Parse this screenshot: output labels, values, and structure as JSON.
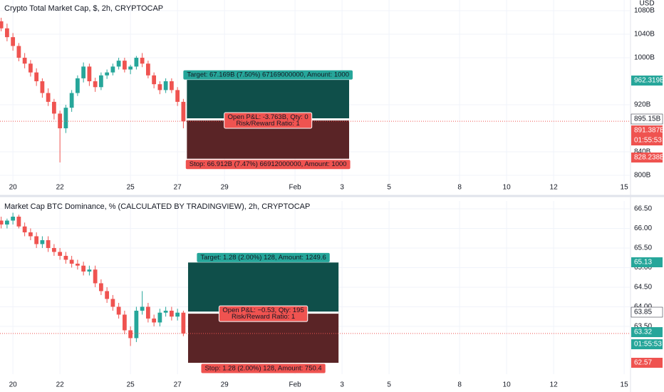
{
  "chart_data": [
    {
      "type": "candlestick",
      "title": "Crypto Total Market Cap, $, 2h, CRYPTOCAP",
      "currency": "USD",
      "up_color": "#26a69a",
      "down_color": "#ef5350",
      "grid": true,
      "xlim": [
        19.45,
        46.27
      ],
      "xticks": [
        20,
        22,
        25,
        27,
        29,
        {
          "value": 32,
          "label": "Feb"
        },
        {
          "value": 34,
          "label": "3"
        },
        {
          "value": 36,
          "label": "5"
        },
        {
          "value": 39,
          "label": "8"
        },
        {
          "value": 41,
          "label": "10"
        },
        {
          "value": 43,
          "label": "12"
        },
        {
          "value": 46,
          "label": "15"
        }
      ],
      "ylim": [
        787.9,
        1098.2
      ],
      "yticks": [
        {
          "value": 1080,
          "label": "1080B"
        },
        {
          "value": 1040,
          "label": "1040B"
        },
        {
          "value": 1000,
          "label": "1000B"
        },
        {
          "value": 920,
          "label": "920B"
        },
        {
          "value": 840,
          "label": "840B"
        },
        {
          "value": 800,
          "label": "800B"
        }
      ],
      "x": [
        19.5,
        19.75,
        20,
        20.25,
        20.5,
        20.75,
        21,
        21.25,
        21.5,
        21.75,
        22,
        22.25,
        22.5,
        22.75,
        23,
        23.25,
        23.5,
        23.75,
        24,
        24.25,
        24.5,
        24.75,
        25,
        25.25,
        25.5,
        25.75,
        26,
        26.25,
        26.5,
        26.75,
        27,
        27.25
      ],
      "open": [
        1062,
        1050,
        1035,
        1020,
        1000,
        990,
        975,
        960,
        940,
        925,
        905,
        880,
        915,
        940,
        965,
        985,
        960,
        950,
        970,
        975,
        985,
        995,
        980,
        985,
        1000,
        990,
        970,
        955,
        945,
        960,
        945,
        925
      ],
      "high": [
        1068,
        1058,
        1042,
        1025,
        1008,
        996,
        982,
        965,
        948,
        930,
        910,
        920,
        945,
        970,
        992,
        990,
        966,
        975,
        980,
        990,
        1000,
        1000,
        988,
        1003,
        1008,
        995,
        975,
        960,
        965,
        965,
        950,
        930
      ],
      "low": [
        1045,
        1028,
        1012,
        994,
        982,
        968,
        952,
        932,
        918,
        895,
        822,
        872,
        908,
        935,
        958,
        952,
        942,
        945,
        964,
        970,
        980,
        975,
        972,
        980,
        984,
        965,
        948,
        938,
        940,
        940,
        918,
        880
      ],
      "close": [
        1050,
        1035,
        1020,
        1000,
        990,
        975,
        960,
        940,
        925,
        905,
        880,
        915,
        940,
        965,
        985,
        960,
        950,
        970,
        975,
        985,
        995,
        980,
        985,
        1000,
        990,
        970,
        955,
        945,
        960,
        945,
        925,
        892
      ],
      "position": {
        "x_start": 27.4,
        "x_end": 34.3,
        "target": 962.319,
        "entry": 895.15,
        "stop": 828.238,
        "target_label": "Target: 67.169B (7.50%) 67169000000, Amount: 1000",
        "pnl_label": "Open P&L: -3.763B, Qty: 0",
        "ratio_label": "Risk/Reward Ratio: 1",
        "stop_label": "Stop: 66.912B (7.47%) 66912000000, Amount: 1000"
      },
      "price_labels": [
        {
          "label": "962.319B",
          "color": "#26a69a"
        },
        {
          "label": "895.15B",
          "color": "#ffffff"
        },
        {
          "label": "891.387B",
          "color": "#ef5350"
        },
        {
          "label": "01:55:53",
          "color": "#ef5350"
        },
        {
          "label": "828.238B",
          "color": "#ef5350"
        }
      ]
    },
    {
      "type": "candlestick",
      "title": "Market Cap BTC Dominance, % (CALCULATED BY TRADINGVIEW), 2h, CRYPTOCAP",
      "up_color": "#26a69a",
      "down_color": "#ef5350",
      "grid": true,
      "xlim": [
        19.45,
        46.27
      ],
      "xticks": [
        20,
        22,
        25,
        27,
        29,
        {
          "value": 32,
          "label": "Feb"
        },
        {
          "value": 34,
          "label": "3"
        },
        {
          "value": 36,
          "label": "5"
        },
        {
          "value": 39,
          "label": "8"
        },
        {
          "value": 41,
          "label": "10"
        },
        {
          "value": 43,
          "label": "12"
        },
        {
          "value": 46,
          "label": "15"
        }
      ],
      "ylim": [
        62.28,
        66.7
      ],
      "yticks": [
        {
          "value": 66.5,
          "label": "66.50"
        },
        {
          "value": 66,
          "label": "66.00"
        },
        {
          "value": 65.5,
          "label": "65.50"
        },
        {
          "value": 65,
          "label": "65.00"
        },
        {
          "value": 64.5,
          "label": "64.50"
        },
        {
          "value": 64,
          "label": "64.00"
        },
        {
          "value": 63.5,
          "label": "63.50"
        }
      ],
      "x": [
        19.5,
        19.75,
        20,
        20.25,
        20.5,
        20.75,
        21,
        21.25,
        21.5,
        21.75,
        22,
        22.25,
        22.5,
        22.75,
        23,
        23.25,
        23.5,
        23.75,
        24,
        24.25,
        24.5,
        24.75,
        25,
        25.25,
        25.5,
        25.75,
        26,
        26.25,
        26.5,
        26.75,
        27,
        27.25
      ],
      "open": [
        66.2,
        66.1,
        66.2,
        66.3,
        66.05,
        65.9,
        65.8,
        65.6,
        65.7,
        65.5,
        65.4,
        65.3,
        65.2,
        65.1,
        65.05,
        64.9,
        64.95,
        64.6,
        64.4,
        64.2,
        64.0,
        63.8,
        63.4,
        63.2,
        63.9,
        64.0,
        63.7,
        63.6,
        63.85,
        63.9,
        63.75,
        63.85
      ],
      "high": [
        66.3,
        66.25,
        66.4,
        66.35,
        66.15,
        66.0,
        65.9,
        65.8,
        65.8,
        65.6,
        65.5,
        65.4,
        65.3,
        65.2,
        65.15,
        65.05,
        65.05,
        64.7,
        64.5,
        64.3,
        64.1,
        63.9,
        63.5,
        64.0,
        64.4,
        64.1,
        63.8,
        63.95,
        64.0,
        64.0,
        63.95,
        63.9
      ],
      "low": [
        66.0,
        66.0,
        66.1,
        66.0,
        65.8,
        65.7,
        65.5,
        65.5,
        65.4,
        65.3,
        65.2,
        65.1,
        65.0,
        64.95,
        64.8,
        64.8,
        64.5,
        64.3,
        64.1,
        63.9,
        63.7,
        63.3,
        63.0,
        63.1,
        63.8,
        63.6,
        63.5,
        63.5,
        63.75,
        63.65,
        63.65,
        63.25
      ],
      "close": [
        66.1,
        66.2,
        66.3,
        66.05,
        65.9,
        65.8,
        65.6,
        65.7,
        65.5,
        65.4,
        65.3,
        65.2,
        65.1,
        65.05,
        64.9,
        64.95,
        64.6,
        64.4,
        64.2,
        64.0,
        63.8,
        63.4,
        63.2,
        63.9,
        64.0,
        63.7,
        63.6,
        63.85,
        63.9,
        63.75,
        63.85,
        63.32
      ],
      "position": {
        "x_start": 27.45,
        "x_end": 33.85,
        "target": 65.13,
        "entry": 63.85,
        "stop": 62.57,
        "target_label": "Target: 1.28 (2.00%) 128, Amount: 1249.6",
        "pnl_label": "Open P&L: −0.53, Qty: 195",
        "ratio_label": "Risk/Reward Ratio: 1",
        "stop_label": "Stop: 1.28 (2.00%) 128, Amount: 750.4"
      },
      "price_labels": [
        {
          "label": "65.13",
          "color": "#26a69a"
        },
        {
          "label": "63.85",
          "color": "#ffffff"
        },
        {
          "label": "63.32",
          "color": "#26a69a"
        },
        {
          "label": "01:55:53",
          "color": "#26a69a"
        },
        {
          "label": "62.57",
          "color": "#ef5350"
        }
      ]
    }
  ]
}
